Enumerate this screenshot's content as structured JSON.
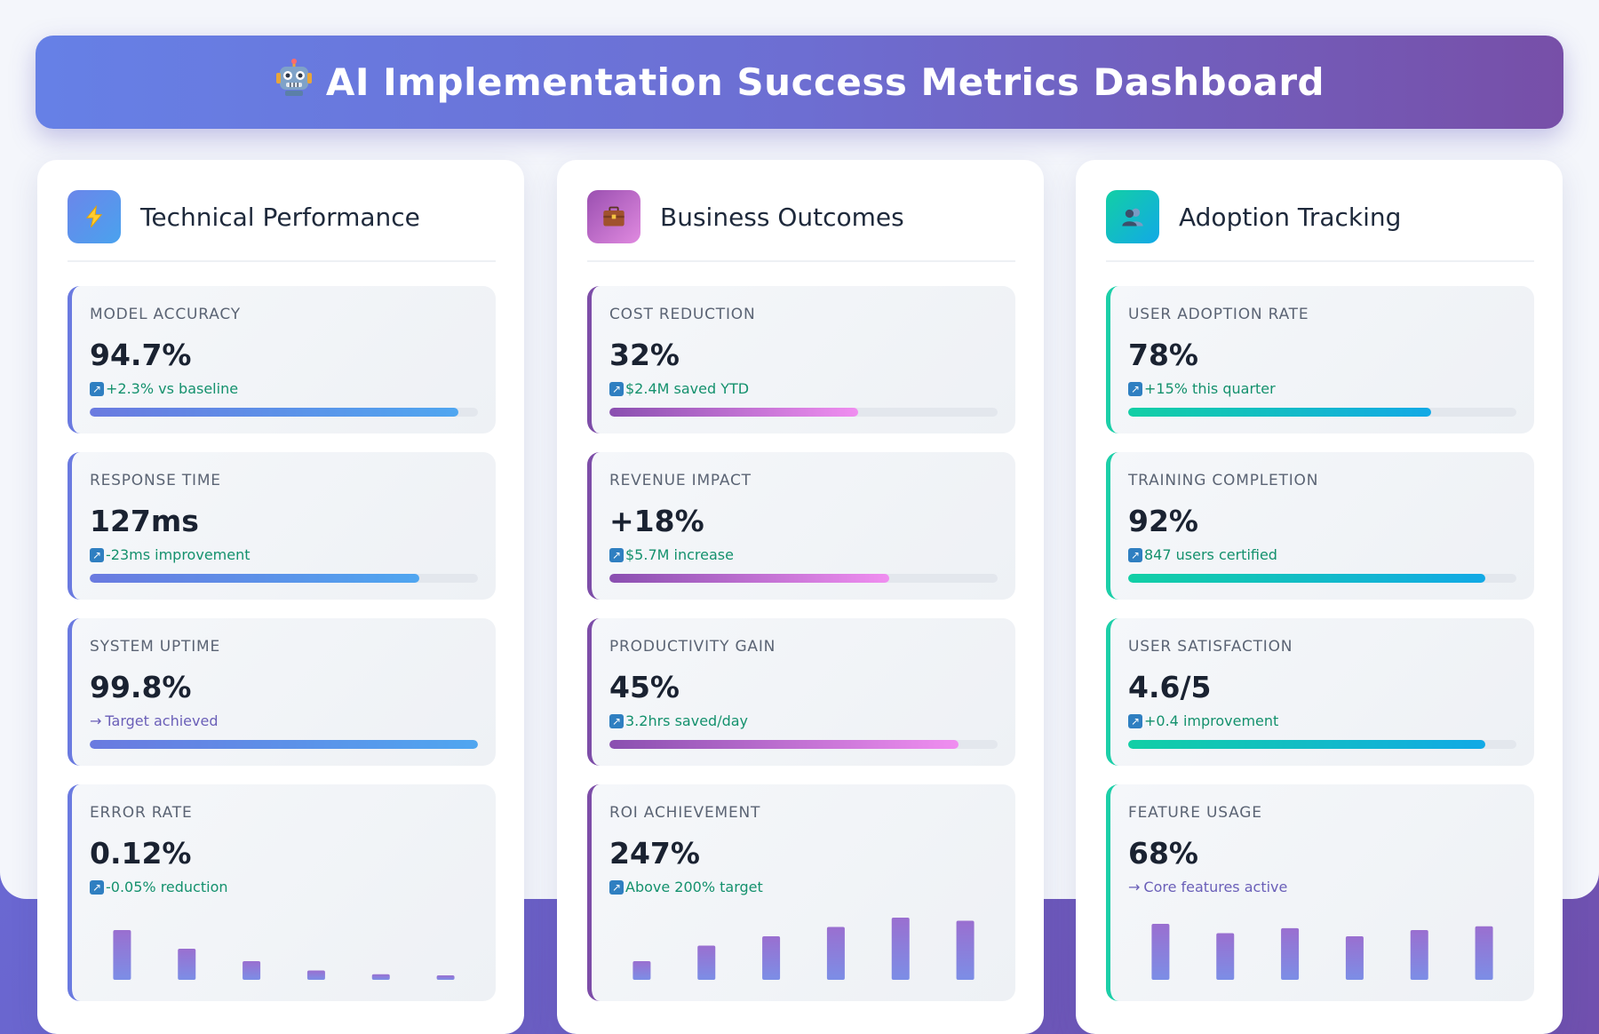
{
  "header": {
    "icon": "robot-icon",
    "title": "AI Implementation Success Metrics Dashboard"
  },
  "colors": {
    "technical_accent": "#6a7ae0",
    "technical_bar": [
      "#6a7ae0",
      "#4fa6f0"
    ],
    "business_accent": "#7d4da8",
    "business_bar": [
      "#8a4fb0",
      "#f08ef0"
    ],
    "adoption_accent": "#1ccfa8",
    "adoption_bar": [
      "#12cfa5",
      "#12a9e6"
    ],
    "positive_text": "#14916d",
    "chart_bar": [
      "#9a6fd0",
      "#7c8ee6"
    ]
  },
  "panels": [
    {
      "title": "Technical Performance",
      "icon": "lightning-icon",
      "metrics": [
        {
          "label": "MODEL ACCURACY",
          "value": "94.7%",
          "change": "+2.3% vs baseline",
          "trend": "up",
          "progress": 0.95
        },
        {
          "label": "RESPONSE TIME",
          "value": "127ms",
          "change": "-23ms improvement",
          "trend": "up",
          "progress": 0.85
        },
        {
          "label": "SYSTEM UPTIME",
          "value": "99.8%",
          "change": "Target achieved",
          "trend": "neutral",
          "progress": 1.0
        },
        {
          "label": "ERROR RATE",
          "value": "0.12%",
          "change": "-0.05% reduction",
          "trend": "up",
          "bars": [
            0.8,
            0.5,
            0.3,
            0.15,
            0.09,
            0.06
          ]
        }
      ]
    },
    {
      "title": "Business Outcomes",
      "icon": "briefcase-icon",
      "metrics": [
        {
          "label": "COST REDUCTION",
          "value": "32%",
          "change": "$2.4M saved YTD",
          "trend": "up",
          "progress": 0.64
        },
        {
          "label": "REVENUE IMPACT",
          "value": "+18%",
          "change": "$5.7M increase",
          "trend": "up",
          "progress": 0.72
        },
        {
          "label": "PRODUCTIVITY GAIN",
          "value": "45%",
          "change": "3.2hrs saved/day",
          "trend": "up",
          "progress": 0.9
        },
        {
          "label": "ROI ACHIEVEMENT",
          "value": "247%",
          "change": "Above 200% target",
          "trend": "up",
          "bars": [
            0.3,
            0.55,
            0.7,
            0.85,
            1.0,
            0.95
          ]
        }
      ]
    },
    {
      "title": "Adoption Tracking",
      "icon": "users-icon",
      "metrics": [
        {
          "label": "USER ADOPTION RATE",
          "value": "78%",
          "change": "+15% this quarter",
          "trend": "up",
          "progress": 0.78
        },
        {
          "label": "TRAINING COMPLETION",
          "value": "92%",
          "change": "847 users certified",
          "trend": "up",
          "progress": 0.92
        },
        {
          "label": "USER SATISFACTION",
          "value": "4.6/5",
          "change": "+0.4 improvement",
          "trend": "up",
          "progress": 0.92
        },
        {
          "label": "FEATURE USAGE",
          "value": "68%",
          "change": "Core features active",
          "trend": "neutral",
          "bars": [
            0.9,
            0.75,
            0.83,
            0.7,
            0.8,
            0.86
          ]
        }
      ]
    }
  ]
}
